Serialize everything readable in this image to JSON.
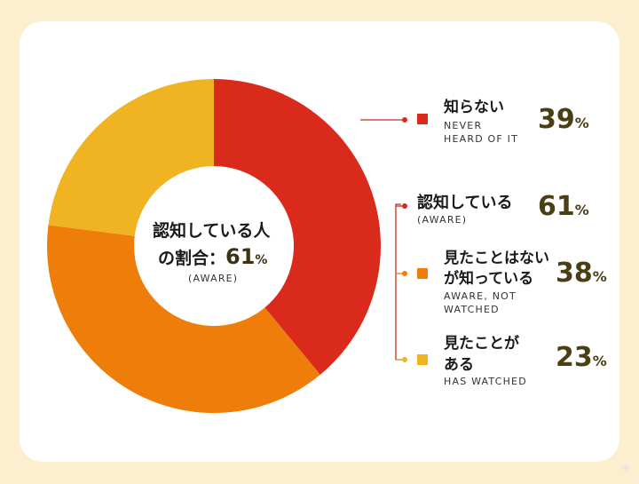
{
  "center": {
    "line1": "認知している人",
    "line2_prefix": "の割合：",
    "value": "61",
    "unit": "%",
    "sub": "(AWARE)"
  },
  "legend": [
    {
      "jp": [
        "知らない"
      ],
      "en": [
        "NEVER",
        "HEARD OF IT"
      ],
      "value": "39",
      "unit": "%",
      "color": "#d92a1c"
    },
    {
      "jp": [
        "認知している"
      ],
      "en": [
        "(AWARE)"
      ],
      "value": "61",
      "unit": "%",
      "color": "#d92a1c"
    },
    {
      "jp": [
        "見たことはない",
        "が知っている"
      ],
      "en": [
        "AWARE, NOT",
        "WATCHED"
      ],
      "value": "38",
      "unit": "%",
      "color": "#ee7d09"
    },
    {
      "jp": [
        "見たことが",
        "ある"
      ],
      "en": [
        "HAS WATCHED"
      ],
      "value": "23",
      "unit": "%",
      "color": "#f0b321"
    }
  ],
  "chart_data": {
    "type": "pie",
    "donut": true,
    "slices": [
      {
        "label": "知らない",
        "value": 39,
        "color": "#d92a1c"
      },
      {
        "label": "見たことはないが知っている",
        "value": 38,
        "color": "#ee7d09"
      },
      {
        "label": "見たことがある",
        "value": 23,
        "color": "#f0b321"
      }
    ],
    "start": "top",
    "direction": "clockwise"
  }
}
